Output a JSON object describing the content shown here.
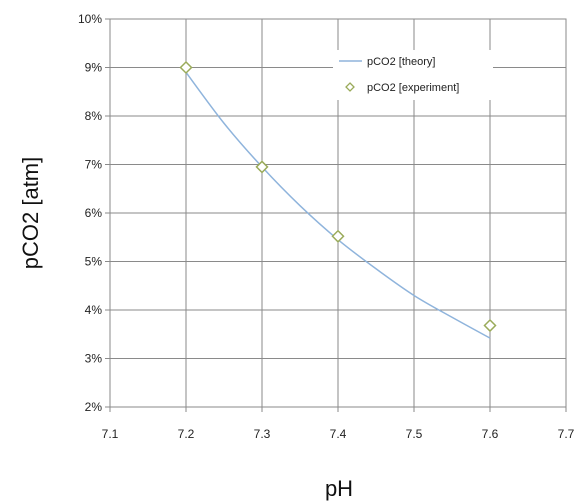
{
  "chart_data": {
    "type": "scatter",
    "xlabel": "pH",
    "ylabel": "pCO2 [atm]",
    "xlim": [
      7.1,
      7.7
    ],
    "ylim": [
      2,
      10
    ],
    "x_ticks": [
      "7.1",
      "7.2",
      "7.3",
      "7.4",
      "7.5",
      "7.6",
      "7.7"
    ],
    "y_ticks": [
      "2%",
      "3%",
      "4%",
      "5%",
      "6%",
      "7%",
      "8%",
      "9%",
      "10%"
    ],
    "grid": true,
    "legend_position": "top-right",
    "series": [
      {
        "name": "pCO2 [theory]",
        "kind": "line",
        "color": "#8fb4dc",
        "x": [
          7.2,
          7.25,
          7.3,
          7.35,
          7.4,
          7.45,
          7.5,
          7.55,
          7.6
        ],
        "y": [
          8.9,
          7.85,
          6.95,
          6.15,
          5.45,
          4.85,
          4.3,
          3.85,
          3.42
        ]
      },
      {
        "name": "pCO2 [experiment]",
        "kind": "scatter",
        "marker": "diamond",
        "color": "#9aab5a",
        "x": [
          7.2,
          7.3,
          7.4,
          7.6
        ],
        "y": [
          9.0,
          6.95,
          5.52,
          3.68
        ]
      }
    ]
  }
}
